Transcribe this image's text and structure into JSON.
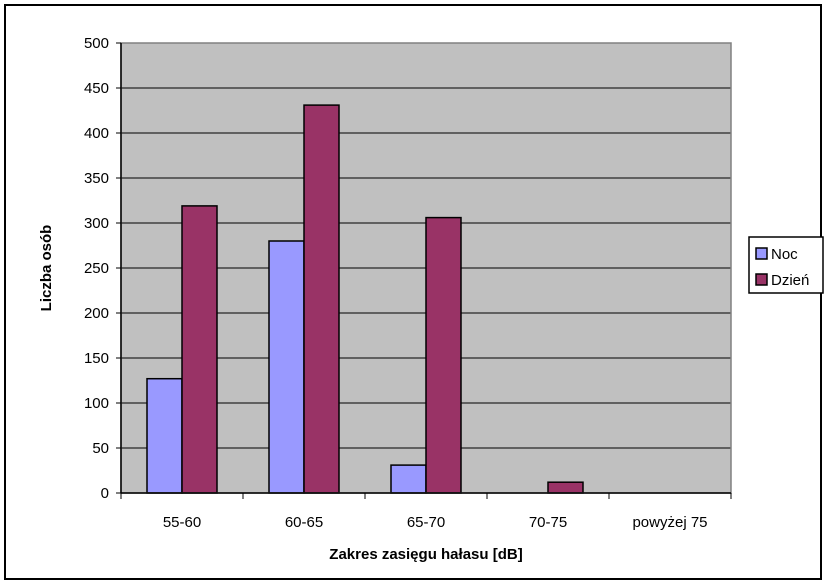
{
  "chart_data": {
    "type": "bar",
    "categories": [
      "55-60",
      "60-65",
      "65-70",
      "70-75",
      "powyżej 75"
    ],
    "series": [
      {
        "name": "Noc",
        "values": [
          127,
          280,
          31,
          0,
          0
        ],
        "color": "#9999ff"
      },
      {
        "name": "Dzień",
        "values": [
          319,
          431,
          306,
          12,
          0
        ],
        "color": "#993366"
      }
    ],
    "title": "",
    "xlabel": "Zakres zasięgu hałasu [dB]",
    "ylabel": "Liczba osób",
    "ylim": [
      0,
      500
    ],
    "yticks": [
      0,
      50,
      100,
      150,
      200,
      250,
      300,
      350,
      400,
      450,
      500
    ],
    "grid": true,
    "legend_position": "right",
    "plot_background": "#c0c0c0"
  }
}
